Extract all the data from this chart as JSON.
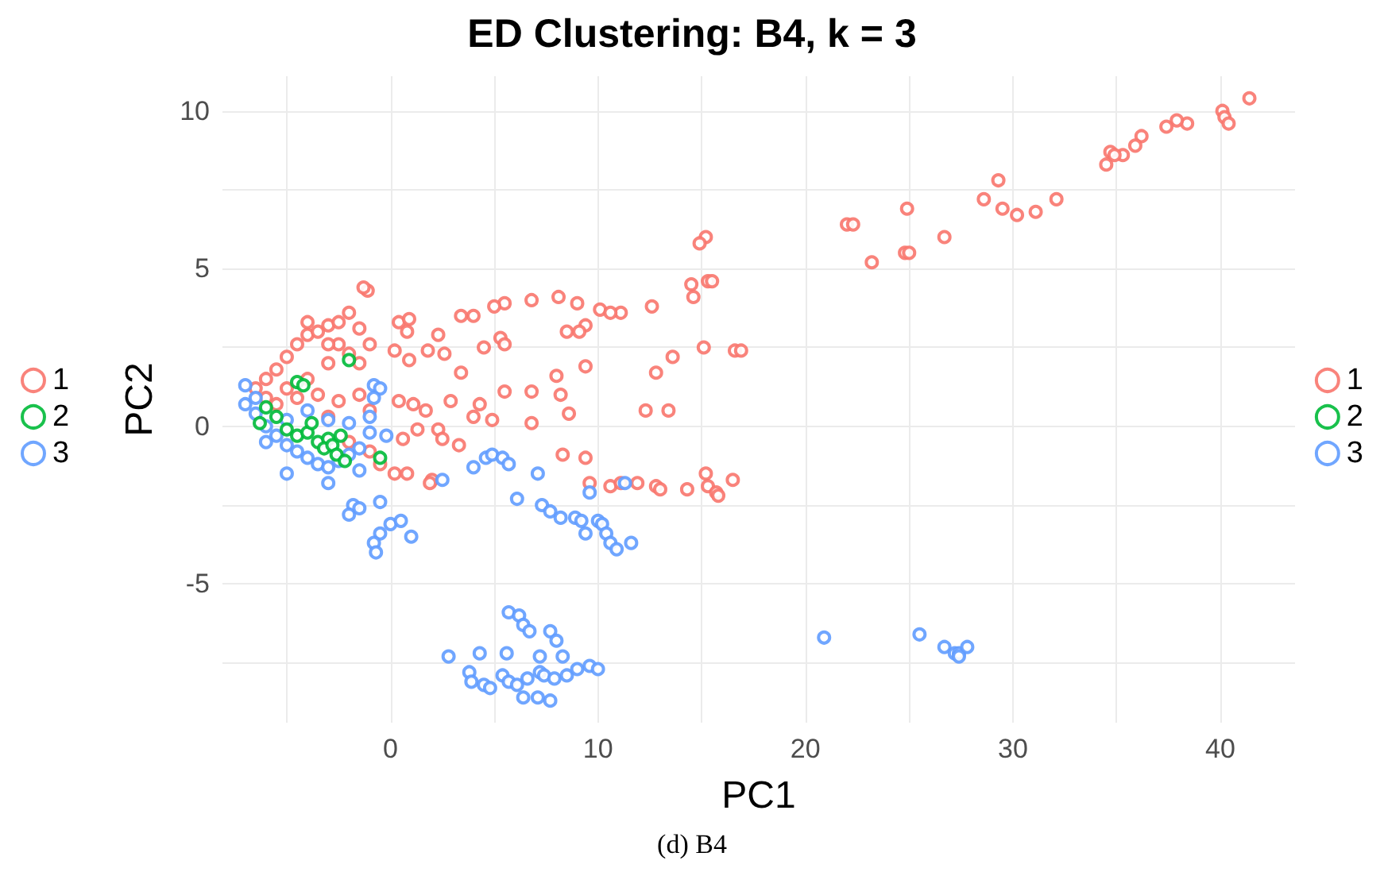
{
  "chart_data": {
    "type": "scatter",
    "title": "ED Clustering: B4, k = 3",
    "xlabel": "PC1",
    "ylabel": "PC2",
    "annotations": [
      "(d) B4"
    ],
    "xlim": [
      -8.1,
      43.6
    ],
    "ylim": [
      -9.4,
      11.1
    ],
    "xticks": [
      {
        "value": -5,
        "label": null
      },
      0,
      {
        "value": 5,
        "label": null
      },
      10,
      {
        "value": 15,
        "label": null
      },
      20,
      {
        "value": 25,
        "label": null
      },
      30,
      {
        "value": 35,
        "label": null
      },
      40
    ],
    "yticks": [
      {
        "value": -7.5,
        "label": null
      },
      -5,
      {
        "value": -2.5,
        "label": null
      },
      0,
      {
        "value": 2.5,
        "label": null
      },
      5,
      {
        "value": 7.5,
        "label": null
      },
      10
    ],
    "grid": true,
    "legend": [
      "left",
      "right"
    ],
    "marker": "circle",
    "series": [
      {
        "name": "1",
        "color": "#f8766d",
        "x": [
          41.4,
          40.1,
          40.2,
          40.4,
          38.4,
          37.9,
          37.4,
          36.2,
          35.9,
          35.3,
          34.7,
          34.5,
          34.9,
          32.1,
          31.1,
          30.2,
          29.5,
          29.3,
          28.6,
          26.7,
          24.9,
          24.8,
          25.0,
          23.2,
          22.0,
          22.3,
          15.2,
          14.9,
          14.5,
          14.6,
          15.3,
          15.5,
          13.6,
          12.8,
          15.1,
          16.6,
          16.9,
          12.3,
          13.4,
          12.6,
          11.1,
          10.1,
          10.6,
          9.4,
          9.0,
          8.1,
          6.8,
          8.5,
          9.1,
          5.5,
          5.0,
          4.0,
          3.4,
          4.5,
          5.3,
          5.5,
          2.3,
          2.6,
          1.8,
          3.4,
          0.4,
          0.9,
          0.8,
          0.2,
          0.9,
          -1.1,
          -1.3,
          4.3,
          4.9,
          5.5,
          6.8,
          8.0,
          8.2,
          9.4,
          8.6,
          2.3,
          2.5,
          3.3,
          1.7,
          2.9,
          0.4,
          1.1,
          0.6,
          1.3,
          0.2,
          0.8,
          2.0,
          1.9,
          4.0,
          6.8,
          8.3,
          9.4,
          9.6,
          10.6,
          11.1,
          11.9,
          12.8,
          13.0,
          14.3,
          15.2,
          15.3,
          15.7,
          15.8,
          16.5,
          -6,
          -5.5,
          -5,
          -4.5,
          -4,
          -3.5,
          -3,
          -2.5,
          -2,
          -1.5,
          -5,
          -4,
          -3,
          -2,
          -1,
          -1.5,
          -2.5,
          -6.5,
          -6,
          -3.5,
          -1,
          -2,
          -1,
          -3,
          -4.5,
          -0.5,
          -2.5,
          -5.5,
          -4,
          -3,
          -1.5
        ],
        "values": [
          10.4,
          10.0,
          9.8,
          9.6,
          9.6,
          9.7,
          9.5,
          9.2,
          8.9,
          8.6,
          8.7,
          8.3,
          8.6,
          7.2,
          6.8,
          6.7,
          6.9,
          7.8,
          7.2,
          6.0,
          6.9,
          5.5,
          5.5,
          5.2,
          6.4,
          6.4,
          6.0,
          5.8,
          4.5,
          4.1,
          4.6,
          4.6,
          2.2,
          1.7,
          2.5,
          2.4,
          2.4,
          0.5,
          0.5,
          3.8,
          3.6,
          3.7,
          3.6,
          3.2,
          3.9,
          4.1,
          4.0,
          3.0,
          3.0,
          3.9,
          3.8,
          3.5,
          3.5,
          2.5,
          2.8,
          2.6,
          2.9,
          2.3,
          2.4,
          1.7,
          3.3,
          3.4,
          3.0,
          2.4,
          2.1,
          4.3,
          4.4,
          0.7,
          0.2,
          1.1,
          1.1,
          1.6,
          1.0,
          1.9,
          0.4,
          -0.1,
          -0.4,
          -0.6,
          0.5,
          0.8,
          0.8,
          0.7,
          -0.4,
          -0.1,
          -1.5,
          -1.5,
          -1.7,
          -1.8,
          0.3,
          0.1,
          -0.9,
          -1.0,
          -1.8,
          -1.9,
          -1.8,
          -1.8,
          -1.9,
          -2.0,
          -2.0,
          -1.5,
          -1.9,
          -2.1,
          -2.2,
          -1.7,
          1.5,
          1.8,
          2.2,
          2.6,
          2.9,
          3.0,
          3.2,
          3.3,
          3.6,
          3.1,
          1.2,
          1.5,
          2.0,
          2.3,
          2.6,
          1.0,
          0.8,
          1.2,
          0.9,
          1.0,
          0.5,
          -0.5,
          -0.8,
          0.3,
          0.9,
          -1.2,
          2.6,
          0.7,
          3.3,
          2.6,
          2.0
        ]
      },
      {
        "name": "2",
        "color": "#00ba38",
        "x": [
          -4.5,
          -4.2,
          -2,
          -6,
          -5.5,
          -5,
          -4.5,
          -4,
          -3.5,
          -3,
          -3.2,
          -2.8,
          -2.6,
          -2.4,
          -0.5,
          -6.3,
          -3.8,
          -2.2
        ],
        "values": [
          1.4,
          1.3,
          2.1,
          0.6,
          0.3,
          -0.1,
          -0.3,
          -0.2,
          -0.5,
          -0.4,
          -0.7,
          -0.6,
          -0.9,
          -0.3,
          -1.0,
          0.1,
          0.1,
          -1.1
        ]
      },
      {
        "name": "3",
        "color": "#619cff",
        "x": [
          -7,
          -7,
          -6.5,
          -6,
          -5.5,
          -5,
          -4.5,
          -4,
          -3.5,
          -3,
          -2.5,
          -2,
          -1.5,
          -6,
          -5,
          -3,
          -1.5,
          -0.8,
          -0.5,
          -0.8,
          -1,
          -0.2,
          -4,
          -3,
          -5,
          -2,
          -1,
          -6.5,
          -1.8,
          -2,
          -1.5,
          -0.5,
          -0.5,
          -0.8,
          -0.7,
          0,
          0.5,
          1,
          4.0,
          4.6,
          4.9,
          5.4,
          5.7,
          2.5,
          6.1,
          7.1,
          7.3,
          7.7,
          8.2,
          8.9,
          9.2,
          9.6,
          9.4,
          10.0,
          10.2,
          10.4,
          10.6,
          10.9,
          11.6,
          11.3,
          5.7,
          6.2,
          6.4,
          6.7,
          7.7,
          8.0,
          5.6,
          7.2,
          8.3,
          4.3,
          2.8,
          3.8,
          3.9,
          4.5,
          4.8,
          5.4,
          5.7,
          6.1,
          6.6,
          7.2,
          7.4,
          7.9,
          8.5,
          9.0,
          9.6,
          10.0,
          6.4,
          7.1,
          7.7,
          20.9,
          25.5,
          26.7,
          27.2,
          27.4,
          27.8,
          27.4
        ],
        "values": [
          1.3,
          0.7,
          0.4,
          0.0,
          -0.3,
          -0.6,
          -0.8,
          -1.0,
          -1.2,
          -1.3,
          -1.1,
          -0.9,
          -0.7,
          -0.5,
          -1.5,
          -1.8,
          -1.4,
          1.3,
          1.2,
          0.9,
          0.3,
          -0.3,
          0.5,
          0.2,
          0.2,
          0.1,
          -0.2,
          0.9,
          -2.5,
          -2.8,
          -2.6,
          -2.4,
          -3.4,
          -3.7,
          -4.0,
          -3.1,
          -3.0,
          -3.5,
          -1.3,
          -1.0,
          -0.9,
          -1.0,
          -1.2,
          -1.7,
          -2.3,
          -1.5,
          -2.5,
          -2.7,
          -2.9,
          -2.9,
          -3.0,
          -2.1,
          -3.4,
          -3.0,
          -3.1,
          -3.4,
          -3.7,
          -3.9,
          -3.7,
          -1.8,
          -5.9,
          -6.0,
          -6.3,
          -6.5,
          -6.5,
          -6.8,
          -7.2,
          -7.3,
          -7.3,
          -7.2,
          -7.3,
          -7.8,
          -8.1,
          -8.2,
          -8.3,
          -7.9,
          -8.1,
          -8.2,
          -8.0,
          -7.8,
          -7.9,
          -8.0,
          -7.9,
          -7.7,
          -7.6,
          -7.7,
          -8.6,
          -8.6,
          -8.7,
          -6.7,
          -6.6,
          -7.0,
          -7.2,
          -7.2,
          -7.0,
          -7.3
        ]
      }
    ]
  }
}
